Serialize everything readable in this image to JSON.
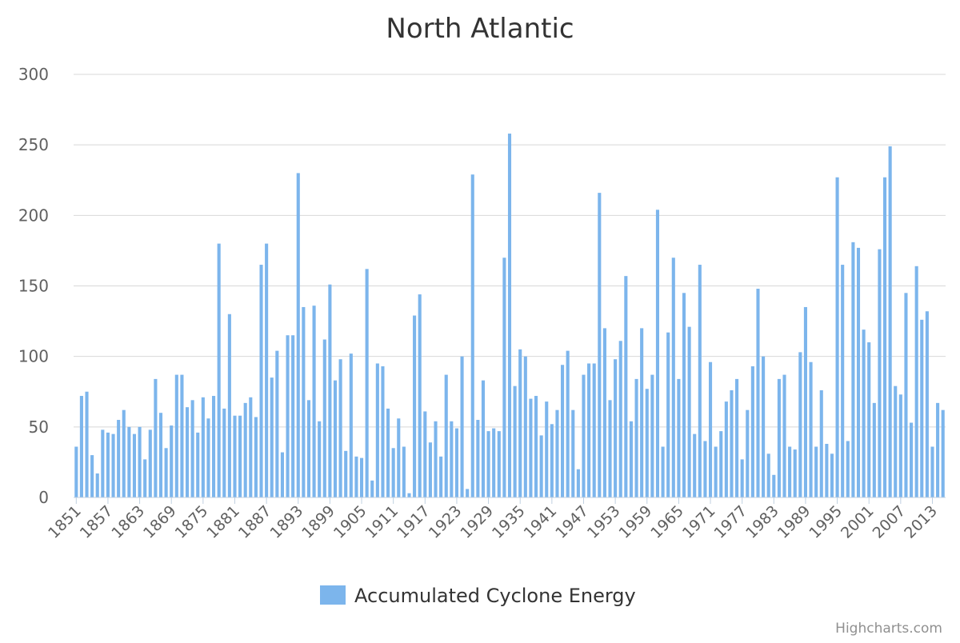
{
  "chart_data": {
    "type": "bar",
    "title": "North Atlantic",
    "xlabel": "",
    "ylabel": "",
    "ylim": [
      0,
      300
    ],
    "yticks": [
      0,
      50,
      100,
      150,
      200,
      250,
      300
    ],
    "grid": true,
    "legend_position": "bottom-center",
    "x_tick_labels": [
      "1851",
      "1857",
      "1863",
      "1869",
      "1875",
      "1881",
      "1887",
      "1893",
      "1899",
      "1905",
      "1911",
      "1917",
      "1923",
      "1929",
      "1935",
      "1941",
      "1947",
      "1953",
      "1959",
      "1965",
      "1971",
      "1977",
      "1983",
      "1989",
      "1995",
      "2001",
      "2007",
      "2013"
    ],
    "x_start_year": 1851,
    "series": [
      {
        "name": "Accumulated Cyclone Energy",
        "color": "#7cb5ec",
        "values": [
          36,
          72,
          75,
          30,
          17,
          48,
          46,
          45,
          55,
          62,
          50,
          45,
          50,
          27,
          48,
          84,
          60,
          35,
          51,
          87,
          87,
          64,
          69,
          46,
          71,
          56,
          72,
          180,
          63,
          130,
          58,
          58,
          67,
          71,
          57,
          165,
          180,
          85,
          104,
          32,
          115,
          115,
          230,
          135,
          69,
          136,
          54,
          112,
          151,
          83,
          98,
          33,
          102,
          29,
          28,
          162,
          12,
          95,
          93,
          63,
          35,
          56,
          36,
          3,
          129,
          144,
          61,
          39,
          54,
          29,
          87,
          54,
          49,
          100,
          6,
          229,
          55,
          83,
          47,
          49,
          47,
          170,
          258,
          79,
          105,
          100,
          70,
          72,
          44,
          68,
          52,
          62,
          94,
          104,
          62,
          20,
          87,
          95,
          95,
          216,
          120,
          69,
          98,
          111,
          157,
          54,
          84,
          120,
          77,
          87,
          204,
          36,
          117,
          170,
          84,
          145,
          121,
          45,
          165,
          40,
          96,
          36,
          47,
          68,
          76,
          84,
          27,
          62,
          93,
          148,
          100,
          31,
          16,
          84,
          87,
          36,
          34,
          103,
          135,
          96,
          36,
          76,
          38,
          31,
          227,
          165,
          40,
          181,
          177,
          119,
          110,
          67,
          176,
          227,
          249,
          79,
          73,
          145,
          53,
          164,
          126,
          132,
          36,
          67,
          62
        ]
      }
    ]
  },
  "credits": "Highcharts.com"
}
